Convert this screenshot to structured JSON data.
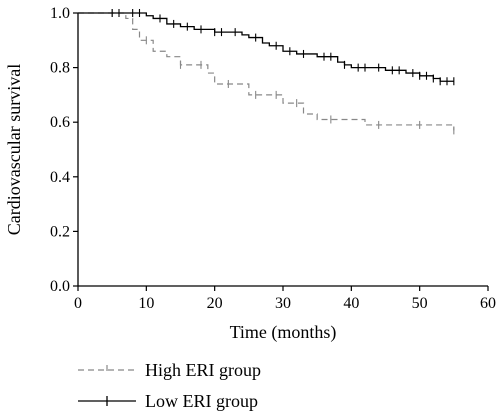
{
  "chart_data": {
    "type": "line",
    "subtype": "kaplan-meier-step",
    "xlabel": "Time (months)",
    "ylabel": "Cardiovascular survival",
    "xlim": [
      0,
      60
    ],
    "ylim": [
      0,
      1.0
    ],
    "x_ticks": [
      0,
      10,
      20,
      30,
      40,
      50,
      60
    ],
    "y_ticks": [
      0.0,
      0.2,
      0.4,
      0.6,
      0.8,
      1.0
    ],
    "x_tick_labels": [
      "0",
      "10",
      "20",
      "30",
      "40",
      "50",
      "60"
    ],
    "y_tick_labels": [
      "0.0",
      "0.2",
      "0.4",
      "0.6",
      "0.8",
      "1.0"
    ],
    "grid": false,
    "legend_position": "bottom-left",
    "series": [
      {
        "name": "High ERI group",
        "line_style": "dashed",
        "color": "#888888",
        "points": [
          [
            0,
            1.0
          ],
          [
            7,
            0.98
          ],
          [
            8,
            0.94
          ],
          [
            9,
            0.9
          ],
          [
            11,
            0.86
          ],
          [
            13,
            0.84
          ],
          [
            15,
            0.81
          ],
          [
            19,
            0.78
          ],
          [
            20,
            0.74
          ],
          [
            25,
            0.7
          ],
          [
            30,
            0.67
          ],
          [
            33,
            0.63
          ],
          [
            35,
            0.61
          ],
          [
            42,
            0.59
          ],
          [
            55,
            0.57
          ]
        ],
        "censor_x": [
          5,
          10,
          15,
          18,
          22,
          26,
          29,
          32,
          37,
          44,
          50,
          55
        ]
      },
      {
        "name": "Low ERI group",
        "line_style": "solid",
        "color": "#000000",
        "points": [
          [
            0,
            1.0
          ],
          [
            10,
            0.99
          ],
          [
            11,
            0.98
          ],
          [
            13,
            0.96
          ],
          [
            15,
            0.95
          ],
          [
            17,
            0.94
          ],
          [
            20,
            0.93
          ],
          [
            24,
            0.92
          ],
          [
            25,
            0.91
          ],
          [
            27,
            0.89
          ],
          [
            28,
            0.88
          ],
          [
            30,
            0.86
          ],
          [
            32,
            0.85
          ],
          [
            35,
            0.84
          ],
          [
            38,
            0.82
          ],
          [
            39,
            0.81
          ],
          [
            40,
            0.8
          ],
          [
            45,
            0.79
          ],
          [
            48,
            0.78
          ],
          [
            50,
            0.77
          ],
          [
            52,
            0.76
          ],
          [
            53,
            0.75
          ],
          [
            55,
            0.75
          ]
        ],
        "censor_x": [
          5,
          6,
          8,
          9,
          12,
          14,
          16,
          18,
          20,
          21,
          23,
          26,
          29,
          31,
          33,
          36,
          37,
          39,
          41,
          42,
          44,
          46,
          47,
          49,
          50,
          51,
          52,
          53,
          54,
          55
        ]
      }
    ]
  }
}
